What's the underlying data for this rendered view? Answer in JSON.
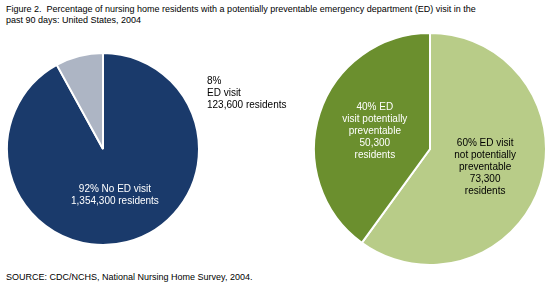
{
  "chart_data": [
    {
      "type": "pie",
      "title": [
        "Figure 2.  Percentage of nursing home residents with a potentially preventable emergency department (ED) visit in the",
        "past 90 days: United States, 2004"
      ],
      "annotations": [
        "SOURCE: CDC/NCHS, National Nursing Home Survey, 2004."
      ],
      "values": [
        92,
        8
      ],
      "value_labels": [
        "92% No ED visit\n1,354,300 residents",
        "8%\nED visit\n123,600 residents"
      ],
      "colors": [
        "#1a3a6b",
        "#adb5c4"
      ],
      "data_labels": true
    },
    {
      "type": "pie",
      "values": [
        60,
        40
      ],
      "value_labels": [
        "60% ED visit\nnot potentially\npreventable\n73,300\nresidents",
        "40% ED\nvisit potentially\npreventable\n50,300\nresidents"
      ],
      "colors": [
        "#b8cc88",
        "#6b8f2e"
      ],
      "data_labels": true
    }
  ]
}
